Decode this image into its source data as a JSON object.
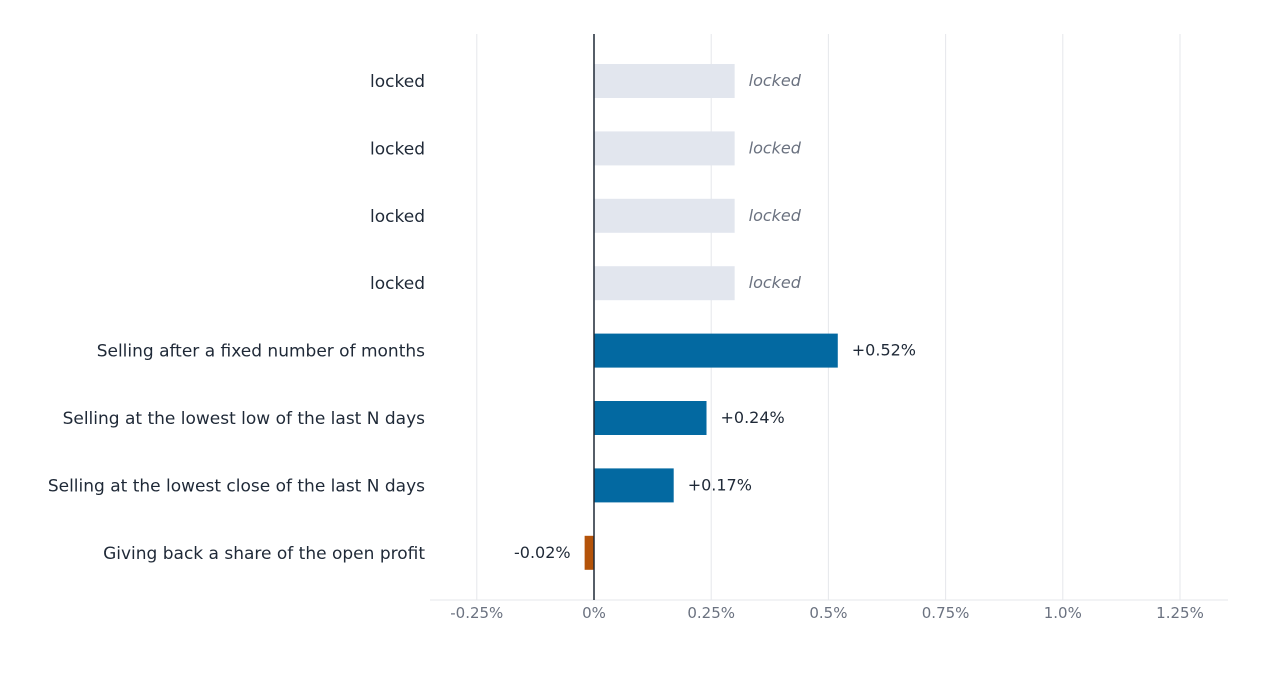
{
  "chart_data": {
    "type": "bar",
    "orientation": "horizontal",
    "title": "",
    "xlabel": "",
    "ylabel": "",
    "xlim": [
      -0.35,
      1.35
    ],
    "x_ticks": [
      -0.25,
      0,
      0.25,
      0.5,
      0.75,
      1.0,
      1.25
    ],
    "x_tick_labels": [
      "-0.25%",
      "0%",
      "0.25%",
      "0.5%",
      "0.75%",
      "1.0%",
      "1.25%"
    ],
    "grid": "vertical",
    "legend": "none",
    "colors": {
      "positive": "#0369a1",
      "negative": "#b45309",
      "locked": "#e2e6ee",
      "grid": "#e5e7eb",
      "zero_line": "#1f2937"
    },
    "categories": [
      "locked",
      "locked",
      "locked",
      "locked",
      "Selling after a fixed number of months",
      "Selling at the lowest low of the last N days",
      "Selling at the lowest close of the last N days",
      "Giving back a share of the open profit"
    ],
    "values": [
      null,
      null,
      null,
      null,
      0.52,
      0.24,
      0.17,
      -0.02
    ],
    "locked": [
      true,
      true,
      true,
      true,
      false,
      false,
      false,
      false
    ],
    "value_labels": [
      "locked",
      "locked",
      "locked",
      "locked",
      "+0.52%",
      "+0.24%",
      "+0.17%",
      "-0.02%"
    ],
    "locked_bar_value": 0.3
  }
}
